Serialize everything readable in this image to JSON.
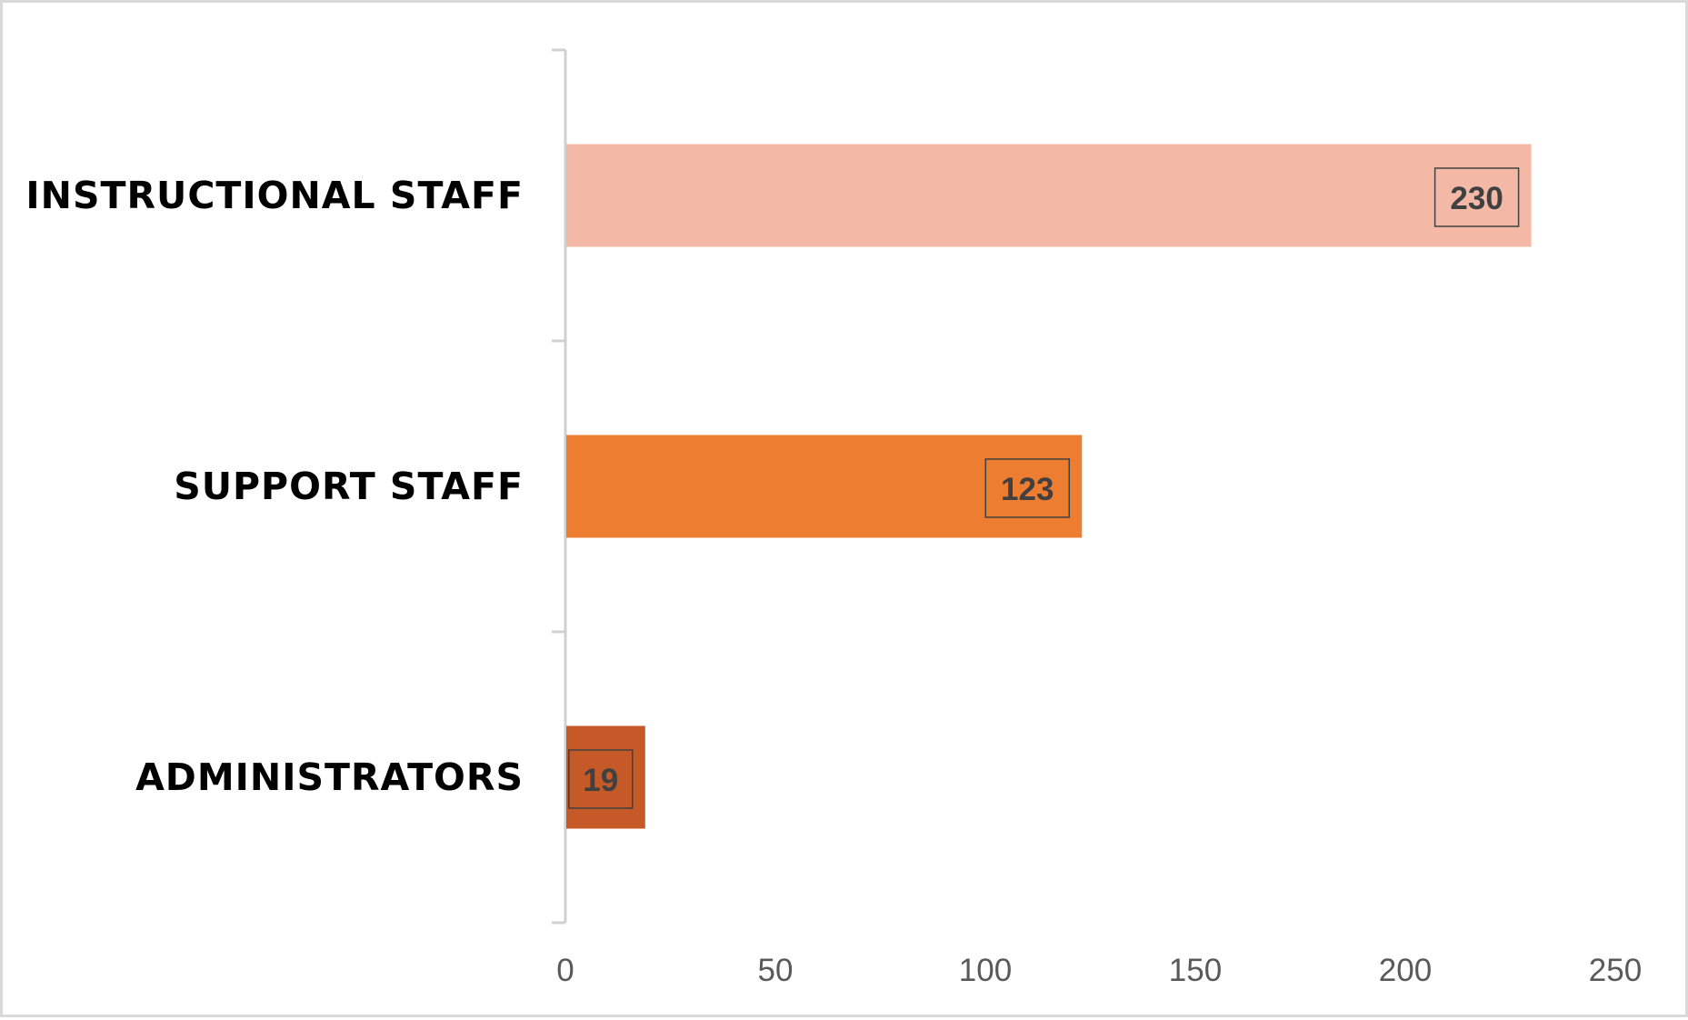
{
  "chart_data": {
    "type": "bar",
    "orientation": "horizontal",
    "categories": [
      "INSTRUCTIONAL STAFF",
      "SUPPORT STAFF",
      "ADMINISTRATORS"
    ],
    "values": [
      230,
      123,
      19
    ],
    "colors": [
      "#f4b8a6",
      "#ed7d31",
      "#c55a28"
    ],
    "data_labels": [
      "230",
      "123",
      "19"
    ],
    "title": "",
    "xlabel": "",
    "ylabel": "",
    "xlim": [
      0,
      250
    ],
    "x_ticks": [
      0,
      50,
      100,
      150,
      200,
      250
    ],
    "x_tick_labels": [
      "0",
      "50",
      "100",
      "150",
      "200",
      "250"
    ],
    "grid": false,
    "legend": "none"
  }
}
